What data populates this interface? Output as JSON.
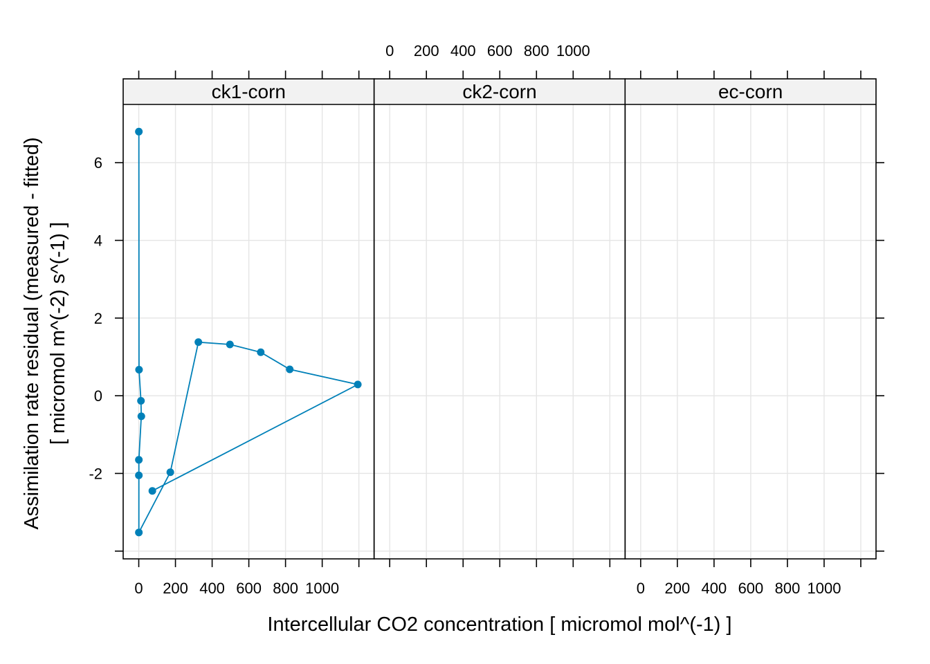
{
  "chart_data": {
    "type": "line",
    "layout": "lattice 3 panels in one row",
    "xlabel": "Intercellular CO2 concentration [ micromol mol^(-1) ]",
    "ylabel_lines": [
      "Assimilation rate residual (measured - fitted)",
      "[ micromol m^(-2) s^(-1) ]"
    ],
    "xlim": [
      -85,
      1283
    ],
    "ylim": [
      -4.2,
      7.5
    ],
    "x_ticks": [
      0,
      200,
      400,
      600,
      800,
      1000,
      1200
    ],
    "x_tick_labels": [
      "0",
      "200",
      "400",
      "600",
      "800",
      "1000"
    ],
    "y_ticks": [
      -4,
      -2,
      0,
      2,
      4,
      6
    ],
    "y_tick_labels": [
      "-2",
      "0",
      "2",
      "4",
      "6"
    ],
    "x_labels_at_bottom_panels": [
      0,
      2
    ],
    "x_labels_at_top_panels": [
      1
    ],
    "grid": true,
    "series_color": "#0080b8",
    "panels": [
      {
        "strip": "ck1-corn",
        "x": [
          0.5,
          1.5,
          12,
          14,
          0.5,
          0.5,
          0.5,
          172,
          325,
          497,
          665,
          823,
          1194,
          74
        ],
        "y": [
          6.8,
          0.67,
          -0.13,
          -0.53,
          -1.65,
          -2.05,
          -3.52,
          -1.97,
          1.38,
          1.32,
          1.12,
          0.68,
          0.29,
          -2.45
        ]
      },
      {
        "strip": "ck2-corn",
        "x": [],
        "y": []
      },
      {
        "strip": "ec-corn",
        "x": [],
        "y": []
      }
    ]
  }
}
